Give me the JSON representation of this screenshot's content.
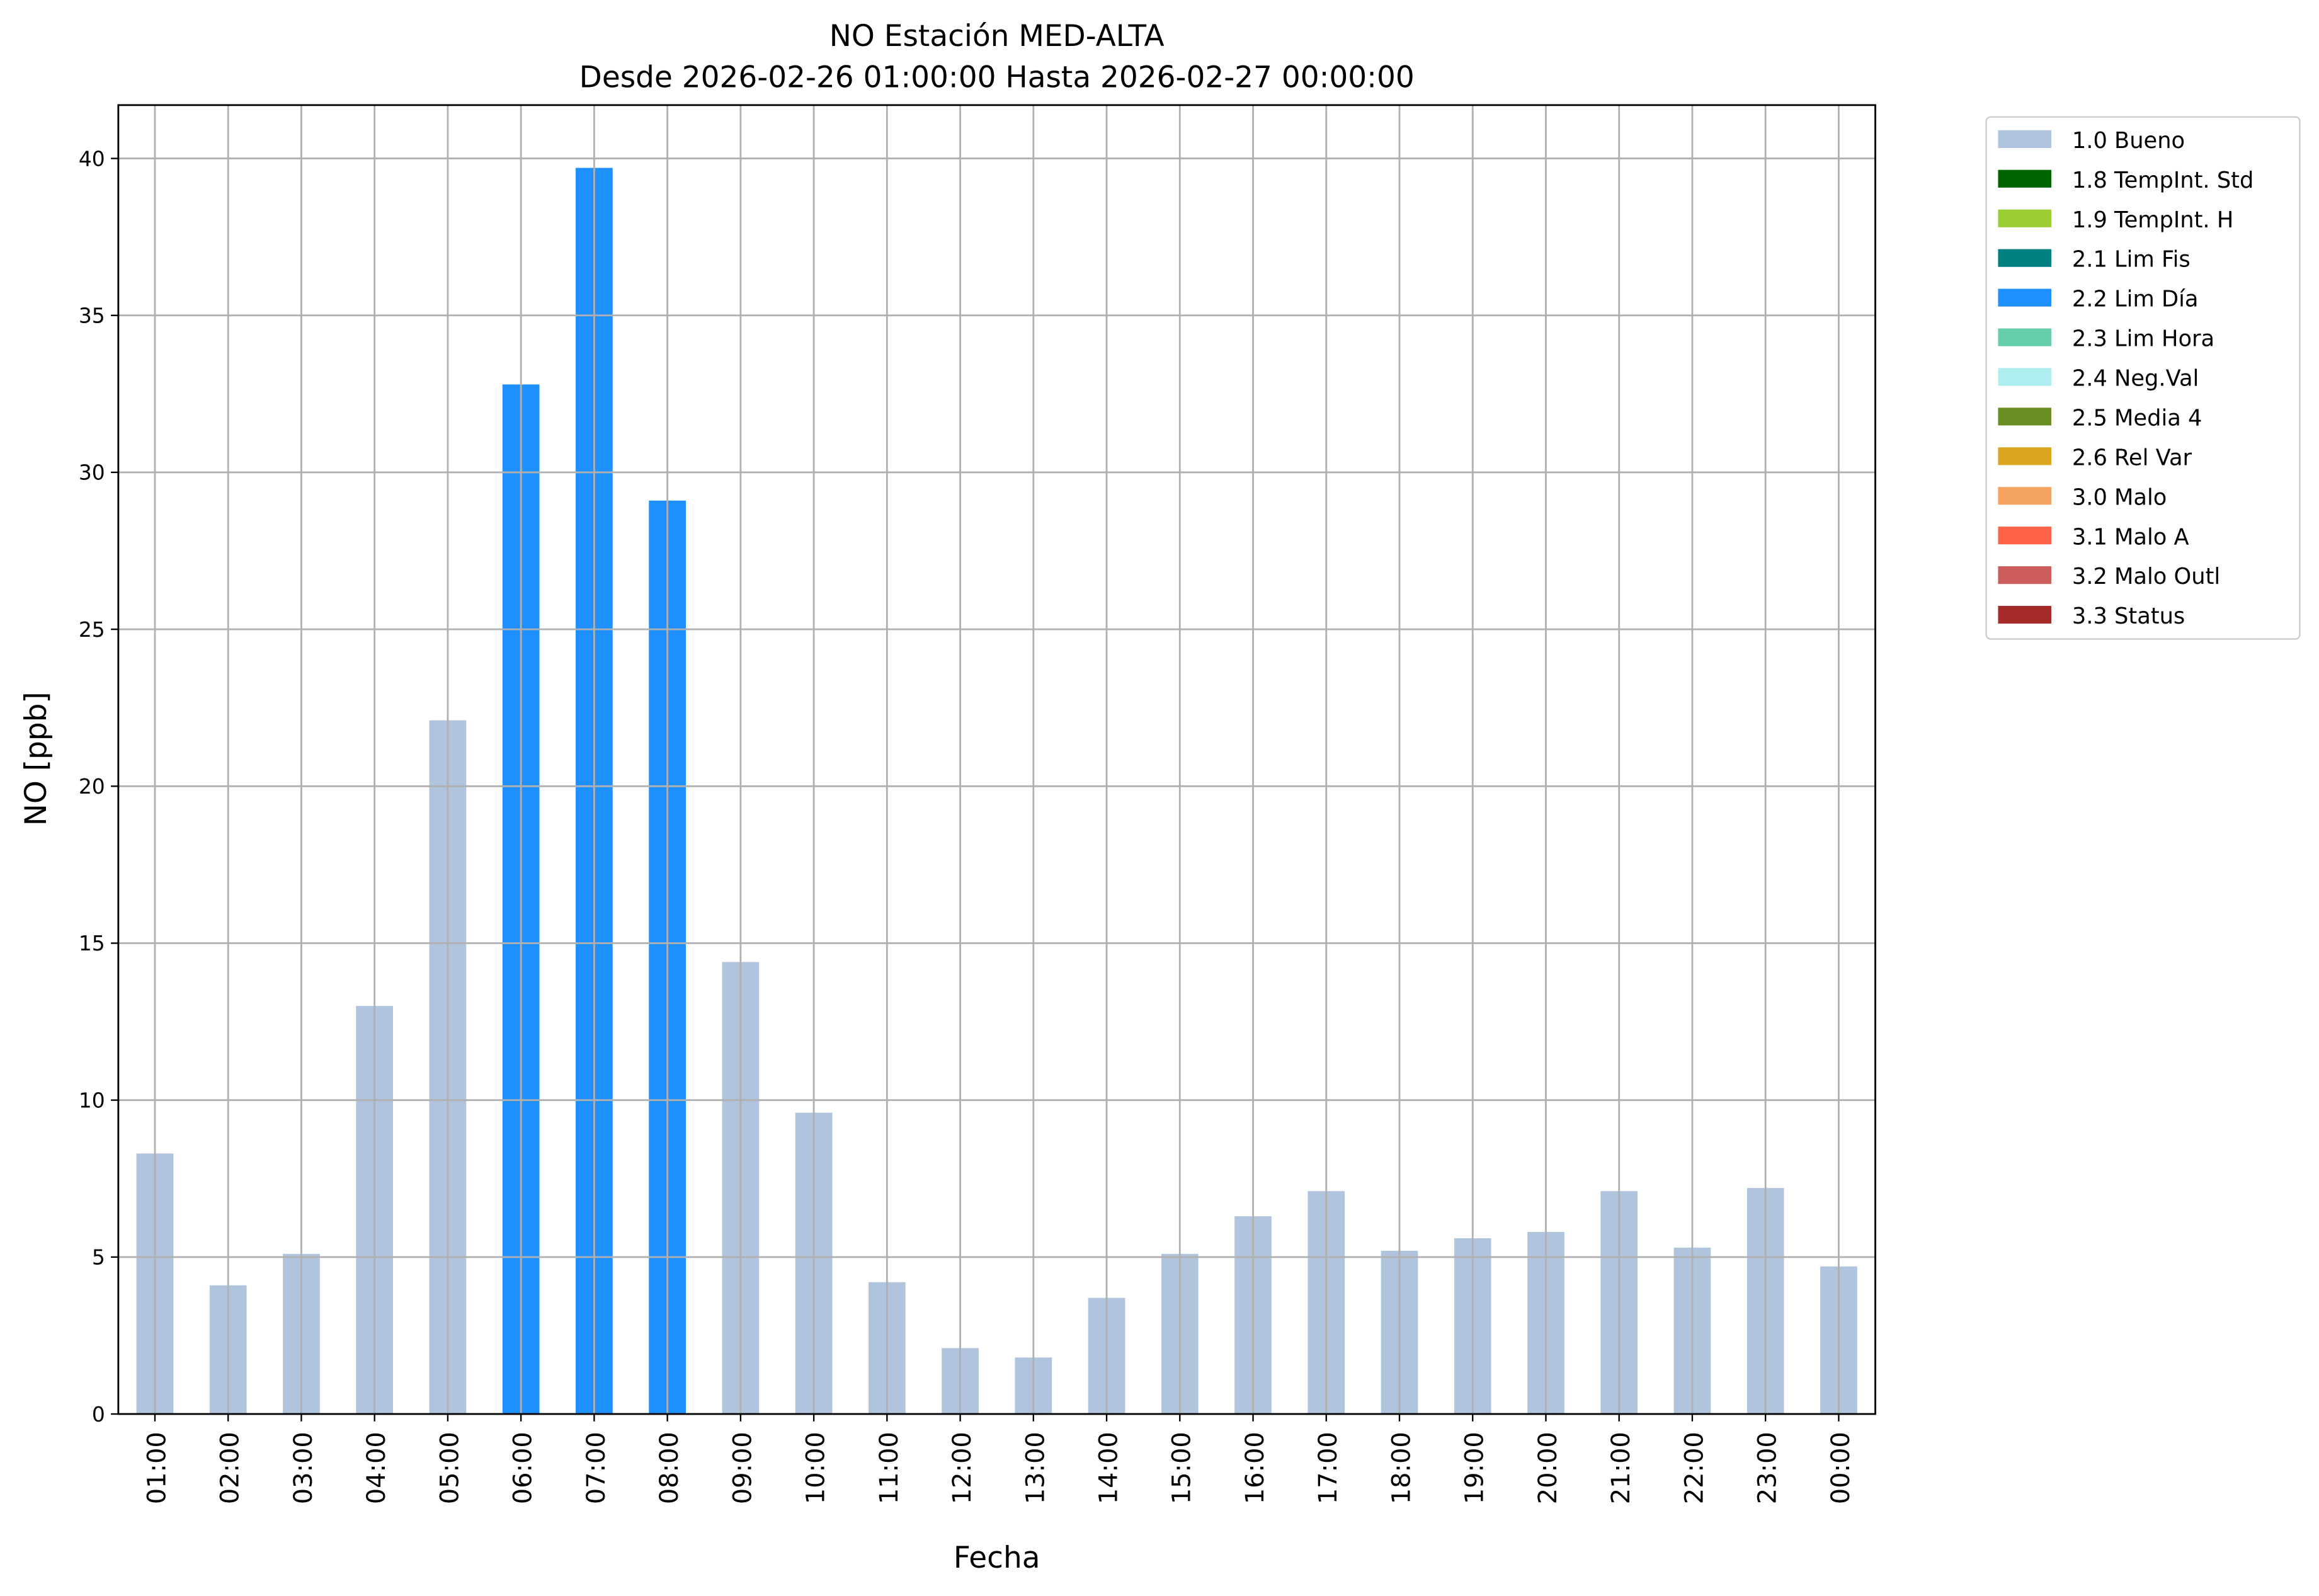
{
  "chart_data": {
    "type": "bar",
    "title": "NO Estación MED-ALTA",
    "subtitle": "Desde 2026-02-26 01:00:00 Hasta 2026-02-27 00:00:00",
    "xlabel": "Fecha",
    "ylabel": "NO [ppb]",
    "ylim": [
      0,
      41.7
    ],
    "yticks": [
      0,
      5,
      10,
      15,
      20,
      25,
      30,
      35,
      40
    ],
    "grid": true,
    "legend_placement": "outside-top-right",
    "categories": [
      "01:00",
      "02:00",
      "03:00",
      "04:00",
      "05:00",
      "06:00",
      "07:00",
      "08:00",
      "09:00",
      "10:00",
      "11:00",
      "12:00",
      "13:00",
      "14:00",
      "15:00",
      "16:00",
      "17:00",
      "18:00",
      "19:00",
      "20:00",
      "21:00",
      "22:00",
      "23:00",
      "00:00"
    ],
    "values": [
      8.3,
      4.1,
      5.1,
      13.0,
      22.1,
      32.8,
      39.7,
      29.1,
      14.4,
      9.6,
      4.2,
      2.1,
      1.8,
      3.7,
      5.1,
      6.3,
      7.1,
      5.2,
      5.6,
      5.8,
      7.1,
      5.3,
      7.2,
      4.7
    ],
    "flags": [
      "1.0 Bueno",
      "1.0 Bueno",
      "1.0 Bueno",
      "1.0 Bueno",
      "1.0 Bueno",
      "2.2 Lim Día",
      "2.2 Lim Día",
      "2.2 Lim Día",
      "1.0 Bueno",
      "1.0 Bueno",
      "1.0 Bueno",
      "1.0 Bueno",
      "1.0 Bueno",
      "1.0 Bueno",
      "1.0 Bueno",
      "1.0 Bueno",
      "1.0 Bueno",
      "1.0 Bueno",
      "1.0 Bueno",
      "1.0 Bueno",
      "1.0 Bueno",
      "1.0 Bueno",
      "1.0 Bueno",
      "1.0 Bueno"
    ],
    "legend": [
      {
        "name": "1.0 Bueno",
        "color": "#b0c4de"
      },
      {
        "name": "1.8 TempInt. Std",
        "color": "#006400"
      },
      {
        "name": "1.9 TempInt. H",
        "color": "#9acd32"
      },
      {
        "name": "2.1 Lim Fis",
        "color": "#008080"
      },
      {
        "name": "2.2 Lim Día",
        "color": "#1e90ff"
      },
      {
        "name": "2.3 Lim Hora",
        "color": "#66cdaa"
      },
      {
        "name": "2.4 Neg.Val",
        "color": "#afeeee"
      },
      {
        "name": "2.5 Media 4",
        "color": "#6b8e23"
      },
      {
        "name": "2.6 Rel Var",
        "color": "#daa520"
      },
      {
        "name": "3.0 Malo",
        "color": "#f4a460"
      },
      {
        "name": "3.1 Malo A",
        "color": "#ff6347"
      },
      {
        "name": "3.2 Malo Outl",
        "color": "#cd5c5c"
      },
      {
        "name": "3.3 Status",
        "color": "#a52a2a"
      }
    ]
  }
}
